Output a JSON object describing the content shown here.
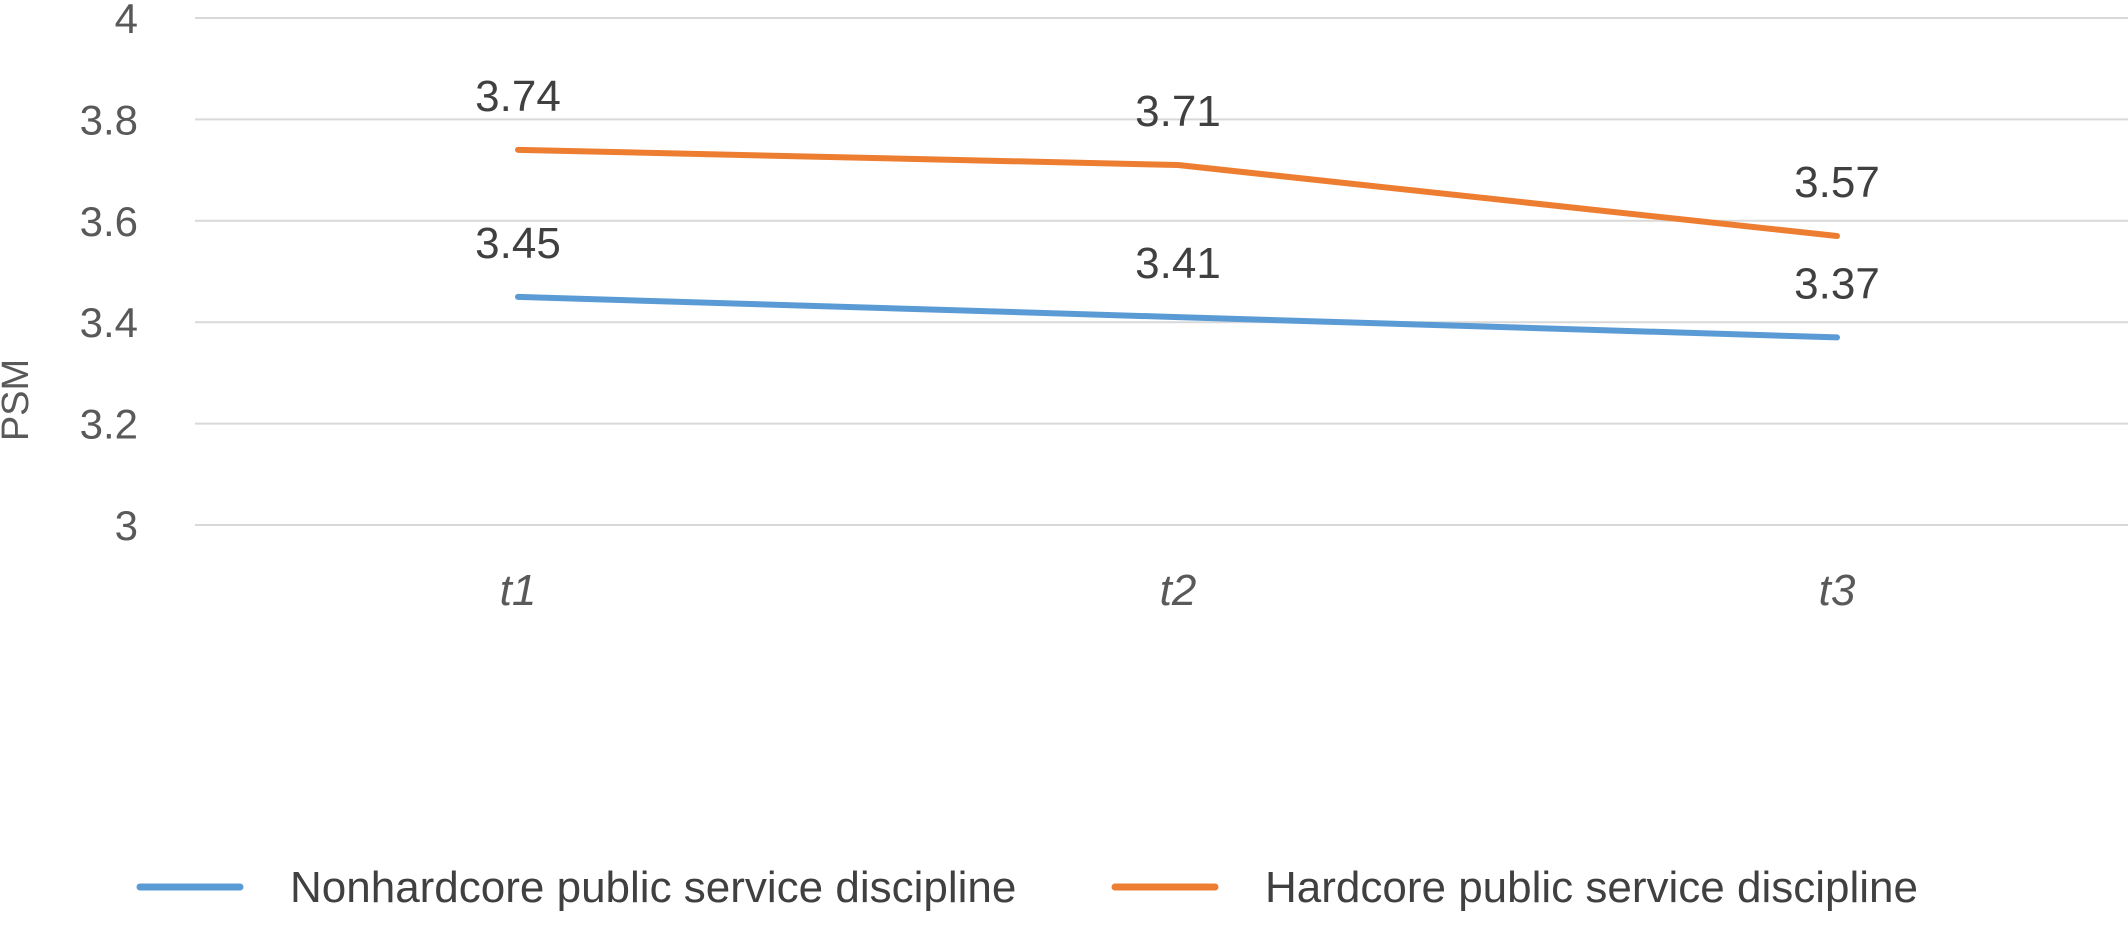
{
  "chart_data": {
    "type": "line",
    "title": "",
    "xlabel": "",
    "ylabel": "PSM",
    "ylim": [
      3,
      4
    ],
    "yticks": [
      "3",
      "3.2",
      "3.4",
      "3.6",
      "3.8",
      "4"
    ],
    "categories": [
      "t1",
      "t2",
      "t3"
    ],
    "grid": true,
    "legend_position": "bottom",
    "series": [
      {
        "name": "Nonhardcore public service discipline",
        "values": [
          3.45,
          3.41,
          3.37
        ],
        "labels": [
          "3.45",
          "3.41",
          "3.37"
        ],
        "color": "#5b9bd5"
      },
      {
        "name": "Hardcore public service discipline",
        "values": [
          3.74,
          3.71,
          3.57
        ],
        "labels": [
          "3.74",
          "3.71",
          "3.57"
        ],
        "color": "#ed7d31"
      }
    ]
  }
}
